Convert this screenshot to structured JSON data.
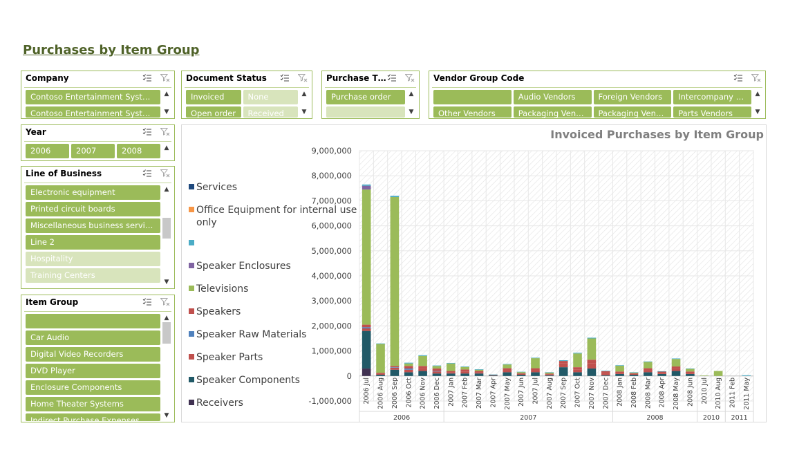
{
  "page": {
    "title": "Purchases by Item Group"
  },
  "icons": {
    "multiselect": "multi-select-icon",
    "clear_filter": "clear-filter-icon",
    "scroll_up": "▲",
    "scroll_down": "▼"
  },
  "slicers": {
    "company": {
      "title": "Company",
      "items": [
        {
          "label": "Contoso Entertainment Syst…",
          "state": "selected"
        },
        {
          "label": "Contoso Entertainment Syst…",
          "state": "selected"
        }
      ]
    },
    "document_status": {
      "title": "Document Status",
      "items": [
        {
          "label": "Invoiced",
          "state": "selected"
        },
        {
          "label": "None",
          "state": "nodata"
        },
        {
          "label": "Open order",
          "state": "selected"
        },
        {
          "label": "Received",
          "state": "nodata"
        }
      ]
    },
    "purchase_type": {
      "title": "Purchase T…",
      "items": [
        {
          "label": "Purchase order",
          "state": "selected"
        },
        {
          "label": "",
          "state": "nodata"
        }
      ]
    },
    "vendor_group": {
      "title": "Vendor Group Code",
      "items": [
        {
          "label": "",
          "state": "selected"
        },
        {
          "label": "Audio Vendors",
          "state": "selected"
        },
        {
          "label": "Foreign Vendors",
          "state": "selected"
        },
        {
          "label": "Intercompany …",
          "state": "selected"
        },
        {
          "label": "Other Vendors",
          "state": "selected"
        },
        {
          "label": "Packaging Ven…",
          "state": "selected"
        },
        {
          "label": "Packaging Ven…",
          "state": "selected"
        },
        {
          "label": "Parts Vendors",
          "state": "selected"
        }
      ]
    },
    "year": {
      "title": "Year",
      "items": [
        {
          "label": "2006",
          "state": "selected"
        },
        {
          "label": "2007",
          "state": "selected"
        },
        {
          "label": "2008",
          "state": "selected"
        }
      ]
    },
    "line_of_business": {
      "title": "Line of Business",
      "items": [
        {
          "label": "Electronic equipment",
          "state": "selected"
        },
        {
          "label": "Printed circuit boards",
          "state": "selected"
        },
        {
          "label": "Miscellaneous business servi…",
          "state": "selected"
        },
        {
          "label": "Line 2",
          "state": "selected"
        },
        {
          "label": "Hospitality",
          "state": "nodata"
        },
        {
          "label": "Training Centers",
          "state": "nodata"
        }
      ]
    },
    "item_group": {
      "title": "Item Group",
      "items": [
        {
          "label": "",
          "state": "selected"
        },
        {
          "label": "Car Audio",
          "state": "selected"
        },
        {
          "label": "Digital Video Recorders",
          "state": "selected"
        },
        {
          "label": "DVD Player",
          "state": "selected"
        },
        {
          "label": "Enclosure Components",
          "state": "selected"
        },
        {
          "label": "Home Theater Systems",
          "state": "selected"
        },
        {
          "label": "Indirect Purchase Expenses",
          "state": "selected"
        }
      ]
    }
  },
  "chart_data": {
    "type": "bar",
    "stacked": true,
    "title": "Invoiced Purchases by Item Group",
    "xlabel": "",
    "ylabel": "",
    "ylim": [
      -1000000,
      9000000
    ],
    "yticks": [
      9000000,
      8000000,
      7000000,
      6000000,
      5000000,
      4000000,
      3000000,
      2000000,
      1000000,
      0,
      -1000000
    ],
    "ytick_labels": [
      "9,000,000",
      "8,000,000",
      "7,000,000",
      "6,000,000",
      "5,000,000",
      "4,000,000",
      "3,000,000",
      "2,000,000",
      "1,000,000",
      "0",
      "-1,000,000"
    ],
    "grid": true,
    "legend_position": "left",
    "categories": [
      "2006 Jul",
      "2006 Aug",
      "2006 Sep",
      "2006 Oct",
      "2006 Nov",
      "2006 Dec",
      "2007 Jan",
      "2007 Feb",
      "2007 Mar",
      "2007 Apr",
      "2007 May",
      "2007 Jun",
      "2007 Jul",
      "2007 Aug",
      "2007 Sep",
      "2007 Oct",
      "2007 Nov",
      "2007 Dec",
      "2008 Jan",
      "2008 Feb",
      "2008 Mar",
      "2008 Apr",
      "2008 May",
      "2008 Jun",
      "2010 Jul",
      "2010 Aug",
      "2011 Feb",
      "2011 May"
    ],
    "year_groups": [
      {
        "label": "2006",
        "count": 6
      },
      {
        "label": "2007",
        "count": 12
      },
      {
        "label": "2008",
        "count": 6
      },
      {
        "label": "2010",
        "count": 2
      },
      {
        "label": "2011",
        "count": 2
      }
    ],
    "series": [
      {
        "name": "Receivers",
        "color": "#403151",
        "values": [
          300000,
          0,
          0,
          0,
          0,
          0,
          0,
          0,
          0,
          0,
          0,
          0,
          0,
          0,
          0,
          0,
          0,
          0,
          0,
          0,
          0,
          0,
          0,
          0,
          0,
          0,
          0,
          0
        ]
      },
      {
        "name": "Speaker Components",
        "color": "#215967",
        "values": [
          1500000,
          50000,
          250000,
          150000,
          200000,
          100000,
          100000,
          100000,
          100000,
          30000,
          150000,
          50000,
          150000,
          30000,
          350000,
          150000,
          300000,
          30000,
          80000,
          50000,
          150000,
          80000,
          200000,
          80000,
          0,
          0,
          0,
          0
        ]
      },
      {
        "name": "Speaker Parts",
        "color": "#c0504d",
        "values": [
          100000,
          30000,
          80000,
          100000,
          100000,
          80000,
          50000,
          80000,
          50000,
          10000,
          80000,
          30000,
          80000,
          30000,
          150000,
          100000,
          200000,
          80000,
          50000,
          30000,
          80000,
          50000,
          100000,
          50000,
          0,
          0,
          0,
          0
        ]
      },
      {
        "name": "Speaker Raw Materials",
        "color": "#4f81bd",
        "values": [
          50000,
          0,
          20000,
          50000,
          0,
          20000,
          0,
          0,
          0,
          0,
          0,
          0,
          0,
          0,
          0,
          0,
          0,
          0,
          0,
          0,
          0,
          0,
          0,
          0,
          0,
          0,
          0,
          0
        ]
      },
      {
        "name": "Speakers",
        "color": "#c0504d",
        "values": [
          100000,
          50000,
          50000,
          100000,
          100000,
          100000,
          50000,
          80000,
          50000,
          10000,
          80000,
          30000,
          80000,
          30000,
          100000,
          100000,
          150000,
          80000,
          50000,
          30000,
          80000,
          50000,
          80000,
          50000,
          0,
          0,
          0,
          0
        ]
      },
      {
        "name": "Televisions",
        "color": "#9bbb59",
        "values": [
          5400000,
          1150000,
          6750000,
          100000,
          400000,
          100000,
          300000,
          100000,
          50000,
          0,
          150000,
          50000,
          400000,
          50000,
          0,
          550000,
          850000,
          0,
          230000,
          30000,
          250000,
          0,
          300000,
          110000,
          20000,
          200000,
          0,
          0
        ]
      },
      {
        "name": "Speaker Enclosures",
        "color": "#8064a2",
        "values": [
          150000,
          0,
          0,
          0,
          0,
          0,
          0,
          0,
          0,
          0,
          0,
          0,
          0,
          0,
          0,
          0,
          0,
          0,
          0,
          0,
          0,
          0,
          0,
          0,
          0,
          0,
          0,
          0
        ]
      },
      {
        "name": "",
        "color": "#4bacc6",
        "values": [
          50000,
          20000,
          50000,
          30000,
          30000,
          20000,
          20000,
          20000,
          20000,
          10000,
          20000,
          10000,
          20000,
          10000,
          30000,
          30000,
          30000,
          20000,
          20000,
          10000,
          20000,
          10000,
          20000,
          10000,
          0,
          0,
          0,
          30000
        ]
      },
      {
        "name": "Office Equipment for internal use only",
        "color": "#f79646",
        "values": [
          0,
          0,
          0,
          0,
          0,
          0,
          0,
          0,
          0,
          0,
          0,
          0,
          0,
          0,
          0,
          0,
          0,
          0,
          0,
          0,
          0,
          0,
          0,
          0,
          0,
          0,
          0,
          0
        ]
      },
      {
        "name": "Services",
        "color": "#1f497d",
        "values": [
          0,
          0,
          0,
          0,
          0,
          0,
          0,
          0,
          0,
          0,
          0,
          0,
          0,
          0,
          0,
          0,
          0,
          0,
          0,
          0,
          0,
          0,
          0,
          0,
          0,
          0,
          0,
          0
        ]
      }
    ]
  }
}
